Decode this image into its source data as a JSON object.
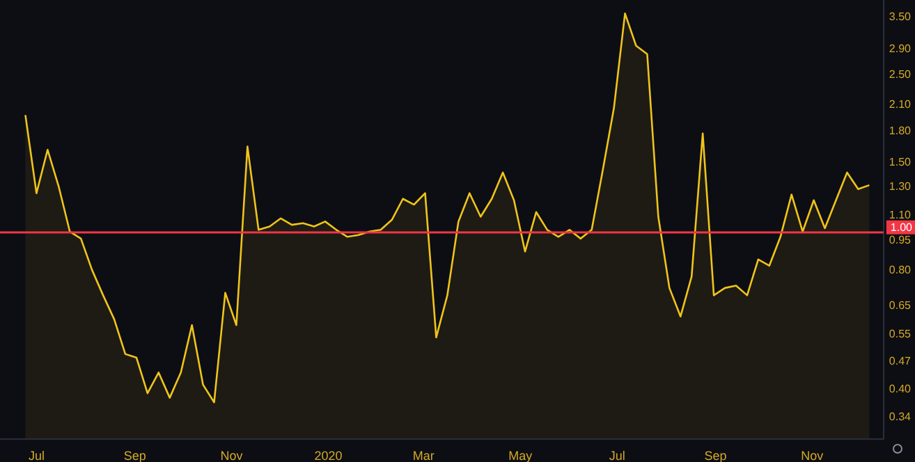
{
  "chart_data": {
    "type": "area",
    "log": "y",
    "grid": false,
    "marker": "none",
    "line_style": "solid",
    "x": [
      "2019-06-24",
      "2019-07-01",
      "2019-07-08",
      "2019-07-15",
      "2019-07-22",
      "2019-07-29",
      "2019-08-05",
      "2019-08-12",
      "2019-08-19",
      "2019-08-26",
      "2019-09-02",
      "2019-09-09",
      "2019-09-16",
      "2019-09-23",
      "2019-09-30",
      "2019-10-07",
      "2019-10-14",
      "2019-10-21",
      "2019-10-28",
      "2019-11-04",
      "2019-11-11",
      "2019-11-18",
      "2019-11-25",
      "2019-12-02",
      "2019-12-09",
      "2019-12-16",
      "2019-12-23",
      "2019-12-30",
      "2020-01-06",
      "2020-01-13",
      "2020-01-20",
      "2020-01-27",
      "2020-02-03",
      "2020-02-10",
      "2020-02-17",
      "2020-02-24",
      "2020-03-02",
      "2020-03-09",
      "2020-03-16",
      "2020-03-23",
      "2020-03-30",
      "2020-04-06",
      "2020-04-13",
      "2020-04-20",
      "2020-04-27",
      "2020-05-04",
      "2020-05-11",
      "2020-05-18",
      "2020-05-25",
      "2020-06-01",
      "2020-06-08",
      "2020-06-15",
      "2020-06-22",
      "2020-06-29",
      "2020-07-06",
      "2020-07-13",
      "2020-07-20",
      "2020-07-27",
      "2020-08-03",
      "2020-08-10",
      "2020-08-17",
      "2020-08-24",
      "2020-08-31",
      "2020-09-07",
      "2020-09-14",
      "2020-09-21",
      "2020-09-28",
      "2020-10-05",
      "2020-10-12",
      "2020-10-19",
      "2020-10-26",
      "2020-11-02",
      "2020-11-09",
      "2020-11-16",
      "2020-11-23",
      "2020-11-30",
      "2020-12-07"
    ],
    "series": [
      {
        "color": "#f0c419",
        "values": [
          1.97,
          1.25,
          1.61,
          1.3,
          1.0,
          0.96,
          0.8,
          0.69,
          0.6,
          0.49,
          0.48,
          0.39,
          0.44,
          0.38,
          0.44,
          0.58,
          0.41,
          0.37,
          0.7,
          0.58,
          1.64,
          1.01,
          1.03,
          1.08,
          1.04,
          1.05,
          1.03,
          1.06,
          1.01,
          0.97,
          0.98,
          1.0,
          1.01,
          1.07,
          1.21,
          1.17,
          1.25,
          0.54,
          0.69,
          1.06,
          1.25,
          1.09,
          1.21,
          1.41,
          1.2,
          0.89,
          1.12,
          1.01,
          0.97,
          1.01,
          0.96,
          1.01,
          1.43,
          2.05,
          3.56,
          2.95,
          2.81,
          1.09,
          0.72,
          0.61,
          0.77,
          1.77,
          0.69,
          0.72,
          0.73,
          0.69,
          0.85,
          0.82,
          0.97,
          1.24,
          1.0,
          1.2,
          1.02,
          1.2,
          1.41,
          1.28,
          1.31
        ]
      }
    ],
    "xlim": [
      "2019-06-08",
      "2020-12-16"
    ],
    "xticks": [
      {
        "value": "2019-07-01",
        "label": "Jul"
      },
      {
        "value": "2019-09-01",
        "label": "Sep"
      },
      {
        "value": "2019-11-01",
        "label": "Nov"
      },
      {
        "value": "2020-01-01",
        "label": "2020"
      },
      {
        "value": "2020-03-01",
        "label": "Mar"
      },
      {
        "value": "2020-05-01",
        "label": "May"
      },
      {
        "value": "2020-07-01",
        "label": "Jul"
      },
      {
        "value": "2020-09-01",
        "label": "Sep"
      },
      {
        "value": "2020-11-01",
        "label": "Nov"
      }
    ],
    "ylim": [
      0.3,
      3.85
    ],
    "yticks": [
      0.34,
      {
        "value": 0.4,
        "label": "0.40"
      },
      0.47,
      0.55,
      0.65,
      {
        "value": 0.8,
        "label": "0.80"
      },
      0.95,
      {
        "value": 1.1,
        "label": "1.10"
      },
      {
        "value": 1.3,
        "label": "1.30"
      },
      {
        "value": 1.5,
        "label": "1.50"
      },
      {
        "value": 1.8,
        "label": "1.80"
      },
      {
        "value": 2.1,
        "label": "2.10"
      },
      {
        "value": 2.5,
        "label": "2.50"
      },
      {
        "value": 2.9,
        "label": "2.90"
      },
      {
        "value": 3.5,
        "label": "3.50"
      }
    ],
    "ref_lines": [
      {
        "axis": "y",
        "value": 1.0,
        "label": "1.00",
        "color": "#f23645"
      }
    ]
  }
}
